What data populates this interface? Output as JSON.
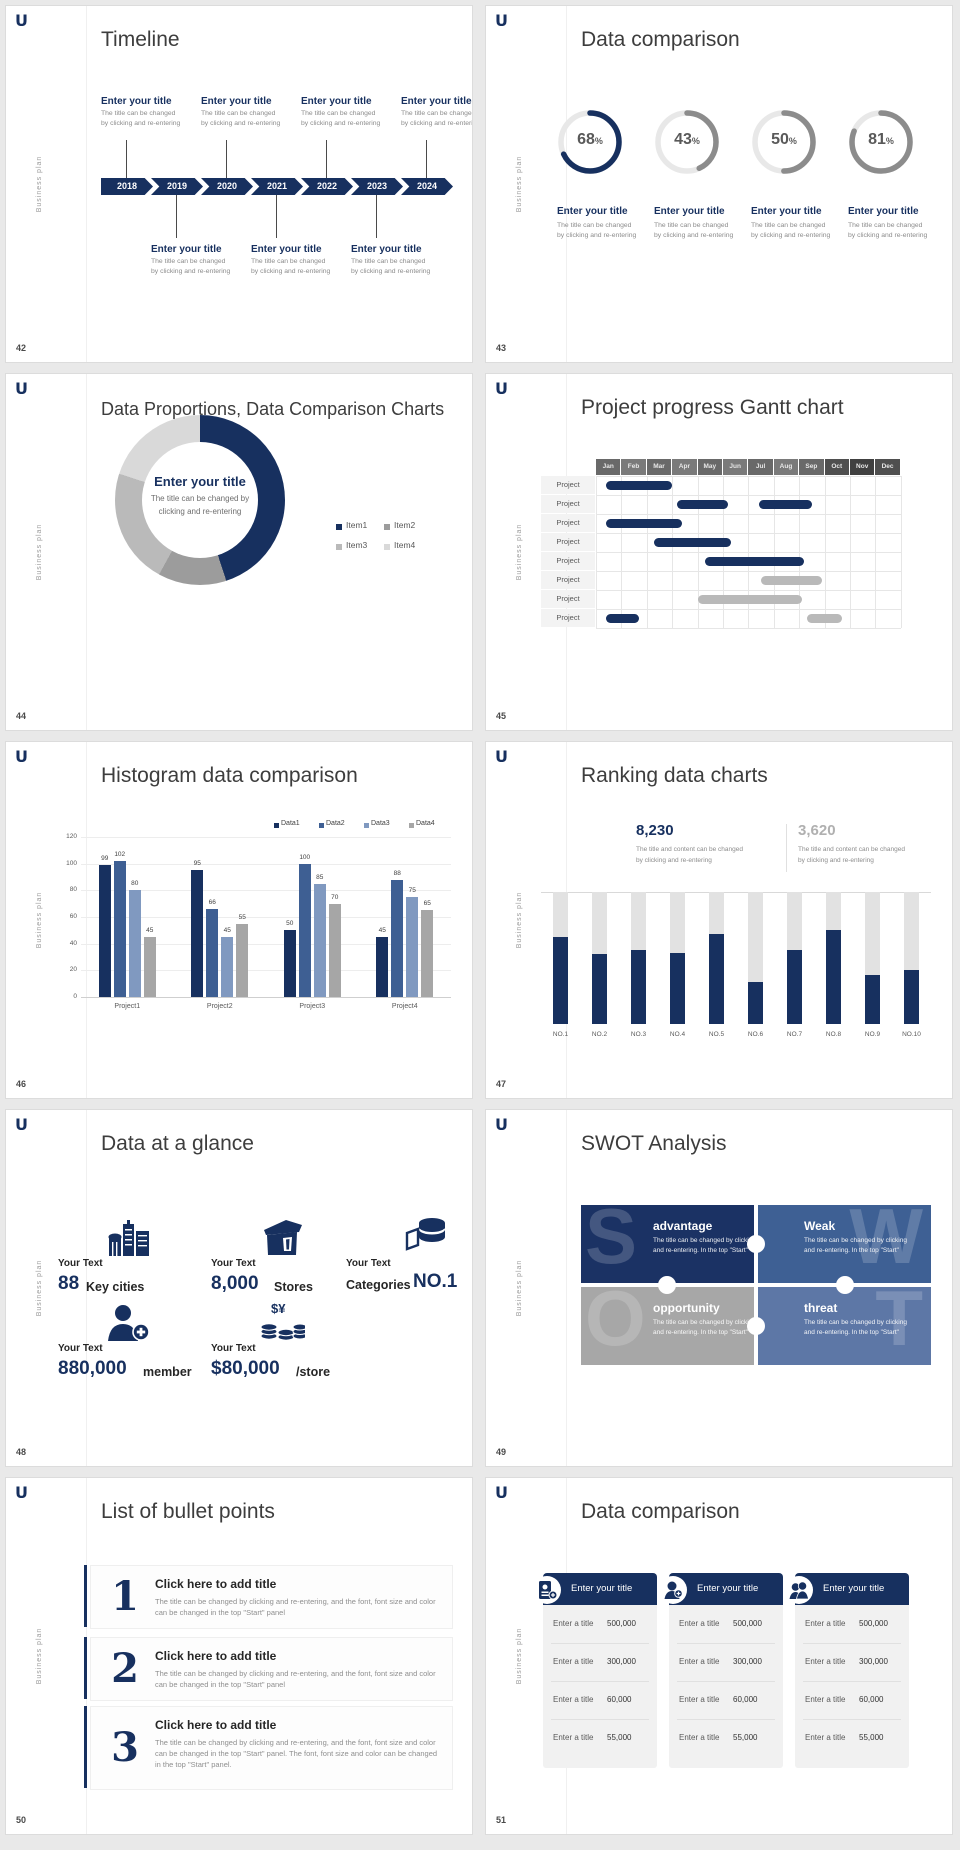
{
  "branding": {
    "logo": "U",
    "vertical_label": "Business plan"
  },
  "colors": {
    "navy": "#17305f",
    "blue": "#3e5f93",
    "steel": "#8099c0",
    "gray": "#a6a6a6",
    "gantt_gray": "#b9b9b9",
    "ring_track": "#e8e8e8",
    "ring_gray": "#8c8c8c",
    "rank_gray": "#e2e2e2",
    "title_text": "#3d3d3d",
    "desc_gray": "#8c8c8c"
  },
  "common": {
    "enter_your_title": "Enter your title",
    "changed_line1": "The title can be changed",
    "changed_line2": "by clicking and re-entering"
  },
  "slides": {
    "timeline": {
      "number": "42",
      "title": "Timeline",
      "years": [
        "2018",
        "2019",
        "2020",
        "2021",
        "2022",
        "2023",
        "2024"
      ],
      "top_slots": [
        0,
        2,
        4,
        6
      ],
      "bottom_slots": [
        1,
        3,
        5
      ],
      "entry_title": "Enter your title",
      "entry_line1": "The title can be changed",
      "entry_line2": "by clicking and re-entering"
    },
    "rings": {
      "number": "43",
      "title": "Data comparison",
      "caption_title": "Enter your title",
      "caption_line1": "The title can be changed",
      "caption_line2": "by clicking and re-entering",
      "chart_data": {
        "type": "pie",
        "title": "Data comparison rings",
        "values": [
          68,
          43,
          50,
          81
        ],
        "tick_labels": [
          "68%",
          "43%",
          "50%",
          "81%"
        ],
        "colors": [
          "#17305f",
          "#8c8c8c",
          "#8c8c8c",
          "#8c8c8c"
        ]
      }
    },
    "donut": {
      "number": "44",
      "title": "Data Proportions, Data Comparison Charts",
      "center_title": "Enter your title",
      "center_line1": "The title can be changed by",
      "center_line2": "clicking and re-entering",
      "chart_data": {
        "type": "pie",
        "legend": [
          "Item1",
          "Item2",
          "Item3",
          "Item4"
        ],
        "values": [
          45,
          13,
          22,
          20
        ],
        "colors": [
          "#17305f",
          "#9c9c9c",
          "#bababa",
          "#d9d9d9"
        ],
        "legend_position": "right"
      }
    },
    "gantt": {
      "number": "45",
      "title": "Project progress Gantt chart",
      "row_label": "Project",
      "chart_data": {
        "type": "table",
        "months": [
          "Jan",
          "Feb",
          "Mar",
          "Apr",
          "May",
          "Jun",
          "Jul",
          "Aug",
          "Sep",
          "Oct",
          "Nov",
          "Dec"
        ],
        "rows": [
          {
            "bars": [
              {
                "start": 0.4,
                "end": 3.0,
                "color": "navy"
              }
            ]
          },
          {
            "bars": [
              {
                "start": 3.2,
                "end": 5.2,
                "color": "navy"
              },
              {
                "start": 6.4,
                "end": 8.5,
                "color": "navy"
              }
            ]
          },
          {
            "bars": [
              {
                "start": 0.4,
                "end": 3.4,
                "color": "navy"
              }
            ]
          },
          {
            "bars": [
              {
                "start": 2.3,
                "end": 5.3,
                "color": "navy"
              }
            ]
          },
          {
            "bars": [
              {
                "start": 4.3,
                "end": 8.2,
                "color": "navy"
              }
            ]
          },
          {
            "bars": [
              {
                "start": 6.5,
                "end": 8.9,
                "color": "gray"
              }
            ]
          },
          {
            "bars": [
              {
                "start": 4.0,
                "end": 8.1,
                "color": "gray"
              }
            ]
          },
          {
            "bars": [
              {
                "start": 0.4,
                "end": 1.7,
                "color": "navy"
              },
              {
                "start": 8.3,
                "end": 9.7,
                "color": "gray"
              }
            ]
          }
        ]
      }
    },
    "histogram": {
      "number": "46",
      "title": "Histogram data comparison",
      "chart_data": {
        "type": "bar",
        "categories": [
          "Project1",
          "Project2",
          "Project3",
          "Project4"
        ],
        "series": [
          {
            "name": "Data1",
            "color": "#17305f",
            "values": [
              99,
              95,
              50,
              45
            ]
          },
          {
            "name": "Data2",
            "color": "#3e5f93",
            "values": [
              102,
              66,
              100,
              88
            ]
          },
          {
            "name": "Data3",
            "color": "#8099c0",
            "values": [
              80,
              45,
              85,
              75
            ]
          },
          {
            "name": "Data4",
            "color": "#a6a6a6",
            "values": [
              45,
              55,
              70,
              65
            ]
          }
        ],
        "ylim": [
          0,
          120
        ],
        "yticks": [
          0,
          20,
          40,
          60,
          80,
          100,
          120
        ],
        "legend_position": "top-right",
        "grid": true
      }
    },
    "ranking": {
      "number": "47",
      "title": "Ranking data charts",
      "stats": [
        {
          "value": "8,230",
          "color": "#17305f",
          "line1": "The title and content can be changed",
          "line2": "by clicking and re-entering"
        },
        {
          "value": "3,620",
          "color": "#b0b0b0",
          "line1": "The title and content can be changed",
          "line2": "by clicking and re-entering"
        }
      ],
      "chart_data": {
        "type": "bar",
        "categories": [
          "NO.1",
          "NO.2",
          "NO.3",
          "NO.4",
          "NO.5",
          "NO.6",
          "NO.7",
          "NO.8",
          "NO.9",
          "NO.10"
        ],
        "values": [
          66,
          53,
          56,
          54,
          68,
          32,
          56,
          71,
          37,
          41
        ],
        "ylim": [
          0,
          100
        ],
        "bar_color": "#17305f",
        "background_bar_color": "#e2e2e2"
      }
    },
    "glance": {
      "number": "48",
      "title": "Data at a glance",
      "label": "Your Text",
      "items": [
        {
          "icon": "city-icon",
          "value": "88",
          "unit": "Key cities"
        },
        {
          "icon": "store-icon",
          "value": "8,000",
          "unit": "Stores"
        },
        {
          "icon": "categories-icon",
          "value": "NO.1",
          "unit": "Categories",
          "unit_first": true
        },
        {
          "icon": "member-icon",
          "value": "880,000",
          "unit": "member"
        },
        {
          "icon": "money-icon",
          "value": "$80,000",
          "unit": "/store"
        }
      ]
    },
    "swot": {
      "number": "49",
      "title": "SWOT Analysis",
      "desc_line1": "The title can be changed by clicking",
      "desc_line2": "and re-entering. In the top \"Start\"",
      "cells": [
        {
          "letter": "S",
          "title": "advantage",
          "bg": "#1b3264",
          "watermark_side": "left"
        },
        {
          "letter": "W",
          "title": "Weak",
          "bg": "#3e6094",
          "watermark_side": "right"
        },
        {
          "letter": "O",
          "title": "opportunity",
          "bg": "#a7a7a7",
          "watermark_side": "left"
        },
        {
          "letter": "T",
          "title": "threat",
          "bg": "#5d77a6",
          "watermark_side": "right"
        }
      ]
    },
    "bullets": {
      "number": "50",
      "title": "List of bullet points",
      "items": [
        {
          "num": "1",
          "title": "Click here to add title",
          "body": "The title can be changed by clicking and re-entering, and the font, font size and color can be changed in the top \"Start\" panel"
        },
        {
          "num": "2",
          "title": "Click here to add title",
          "body": "The title can be changed by clicking and re-entering, and the font, font size and color can be changed in the top \"Start\" panel"
        },
        {
          "num": "3",
          "title": "Click here to add title",
          "body": "The title can be changed by clicking and re-entering, and the font, font size and color can be changed in the top \"Start\" panel. The font, font size and color can be changed in the top \"Start\" panel."
        }
      ]
    },
    "comparison": {
      "number": "51",
      "title": "Data comparison",
      "card_title": "Enter your title",
      "row_label": "Enter a title",
      "values": [
        "500,000",
        "300,000",
        "60,000",
        "55,000"
      ],
      "card_icons": [
        "id-card-icon",
        "member-add-icon",
        "team-icon"
      ]
    }
  }
}
